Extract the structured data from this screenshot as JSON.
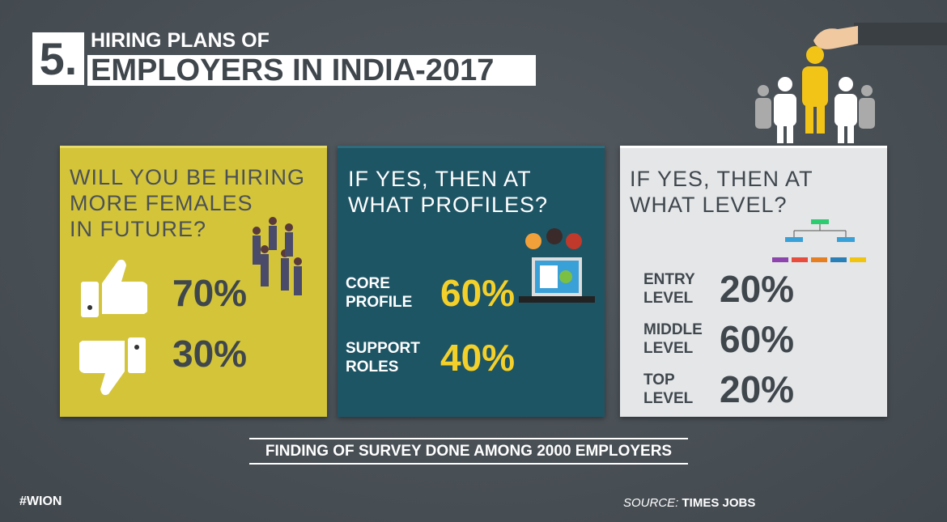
{
  "header": {
    "number": "5.",
    "line1": "HIRING PLANS OF",
    "line2": "EMPLOYERS IN INDIA-2017"
  },
  "panels": [
    {
      "question": [
        "WILL YOU BE HIRING",
        "MORE FEMALES",
        "IN FUTURE?"
      ],
      "items": [
        {
          "value": "70%"
        },
        {
          "value": "30%"
        }
      ]
    },
    {
      "question": [
        "IF YES, THEN AT",
        "WHAT PROFILES?"
      ],
      "items": [
        {
          "label": [
            "CORE",
            "PROFILE"
          ],
          "value": "60%"
        },
        {
          "label": [
            "SUPPORT",
            "ROLES"
          ],
          "value": "40%"
        }
      ]
    },
    {
      "question": [
        "IF YES, THEN AT",
        "WHAT LEVEL?"
      ],
      "items": [
        {
          "label": [
            "ENTRY",
            "LEVEL"
          ],
          "value": "20%"
        },
        {
          "label": [
            "MIDDLE",
            "LEVEL"
          ],
          "value": "60%"
        },
        {
          "label": [
            "TOP",
            "LEVEL"
          ],
          "value": "20%"
        }
      ]
    }
  ],
  "footnote": "FINDING OF SURVEY DONE AMONG 2000 EMPLOYERS",
  "hashtag": "#WION",
  "source": {
    "label": "SOURCE:",
    "text": "TIMES JOBS"
  }
}
